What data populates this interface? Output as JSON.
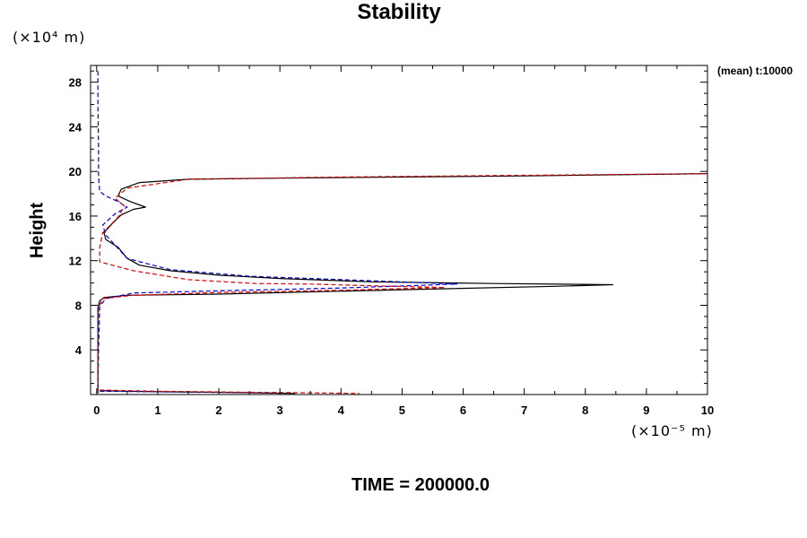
{
  "chart_data": {
    "type": "line",
    "title": "Stability",
    "ylabel": "Height",
    "xlabel": "",
    "y_multiplier": "(×10⁴ m)",
    "x_multiplier": "(×10⁻⁵ m)",
    "annotation": "(mean) t:10000",
    "footer": "TIME = 200000.0",
    "xlim": [
      -0.1,
      10
    ],
    "ylim": [
      0,
      29.5
    ],
    "x_ticks": [
      0,
      1,
      2,
      3,
      4,
      5,
      6,
      7,
      8,
      9,
      10
    ],
    "y_ticks": [
      4,
      8,
      12,
      16,
      20,
      24,
      28
    ],
    "grid": false,
    "series": [
      {
        "color": "#000000",
        "dash": "solid",
        "points": [
          [
            0.02,
            0.1
          ],
          [
            0.02,
            4
          ],
          [
            0.02,
            7.8
          ],
          [
            0.05,
            8.4
          ],
          [
            0.12,
            8.7
          ],
          [
            0.5,
            8.9
          ],
          [
            2,
            9.0
          ],
          [
            5,
            9.4
          ],
          [
            7.5,
            9.7
          ],
          [
            8.45,
            9.85
          ],
          [
            6.5,
            9.95
          ],
          [
            4.5,
            10.1
          ],
          [
            3,
            10.4
          ],
          [
            2,
            10.7
          ],
          [
            1.2,
            11.1
          ],
          [
            0.7,
            11.6
          ],
          [
            0.5,
            12.2
          ],
          [
            0.35,
            13.2
          ],
          [
            0.15,
            13.9
          ],
          [
            0.12,
            14.5
          ],
          [
            0.25,
            15.3
          ],
          [
            0.4,
            16.1
          ],
          [
            0.6,
            16.6
          ],
          [
            0.8,
            16.8
          ],
          [
            0.55,
            17.3
          ],
          [
            0.35,
            17.8
          ],
          [
            0.4,
            18.4
          ],
          [
            0.7,
            19.0
          ],
          [
            1.5,
            19.3
          ],
          [
            3,
            19.4
          ],
          [
            5,
            19.5
          ],
          [
            7,
            19.6
          ],
          [
            8.5,
            19.7
          ],
          [
            10,
            19.8
          ]
        ]
      },
      {
        "color": "#000000",
        "dash": "solid",
        "points": [
          [
            0.05,
            0.35
          ],
          [
            0.5,
            0.3
          ],
          [
            1,
            0.25
          ],
          [
            2,
            0.2
          ],
          [
            3.25,
            0.1
          ]
        ]
      },
      {
        "color": "#0000cc",
        "dash": "dashed",
        "points": [
          [
            0.02,
            29.0
          ],
          [
            0.02,
            26
          ],
          [
            0.03,
            22
          ],
          [
            0.03,
            19.5
          ],
          [
            0.05,
            18.2
          ],
          [
            0.15,
            17.8
          ],
          [
            0.35,
            17.3
          ],
          [
            0.5,
            16.8
          ],
          [
            0.3,
            16.2
          ],
          [
            0.1,
            15.2
          ],
          [
            0.15,
            14.3
          ],
          [
            0.3,
            13.4
          ],
          [
            0.5,
            12.2
          ],
          [
            1.2,
            11.2
          ],
          [
            2.5,
            10.6
          ],
          [
            4.5,
            10.2
          ],
          [
            5.9,
            9.9
          ],
          [
            4,
            9.55
          ],
          [
            2,
            9.3
          ],
          [
            0.6,
            9.1
          ],
          [
            0.15,
            8.6
          ],
          [
            0.05,
            7.9
          ],
          [
            0.03,
            4
          ],
          [
            0.02,
            0.3
          ]
        ]
      },
      {
        "color": "#0000cc",
        "dash": "dashed",
        "points": [
          [
            0.05,
            0.3
          ],
          [
            1,
            0.25
          ],
          [
            2,
            0.2
          ],
          [
            3,
            0.15
          ]
        ]
      },
      {
        "color": "#dd0000",
        "dash": "dashed",
        "points": [
          [
            0.02,
            0.3
          ],
          [
            0.02,
            4
          ],
          [
            0.03,
            7.8
          ],
          [
            0.1,
            8.6
          ],
          [
            0.6,
            8.9
          ],
          [
            2,
            9.15
          ],
          [
            4,
            9.35
          ],
          [
            5.7,
            9.6
          ],
          [
            4.5,
            9.75
          ],
          [
            3.5,
            9.9
          ],
          [
            2.6,
            9.95
          ],
          [
            1.5,
            10.3
          ],
          [
            0.6,
            11.1
          ],
          [
            0.05,
            11.9
          ],
          [
            0.05,
            13.2
          ],
          [
            0.1,
            14.5
          ],
          [
            0.35,
            15.9
          ],
          [
            0.45,
            16.9
          ],
          [
            0.3,
            17.6
          ],
          [
            0.5,
            18.5
          ],
          [
            1.5,
            19.3
          ],
          [
            4,
            19.5
          ],
          [
            7,
            19.65
          ],
          [
            10,
            19.8
          ]
        ]
      },
      {
        "color": "#dd0000",
        "dash": "dashed",
        "points": [
          [
            0.05,
            0.4
          ],
          [
            1,
            0.3
          ],
          [
            2.5,
            0.2
          ],
          [
            3.5,
            0.15
          ],
          [
            4.3,
            0.1
          ]
        ]
      }
    ]
  }
}
